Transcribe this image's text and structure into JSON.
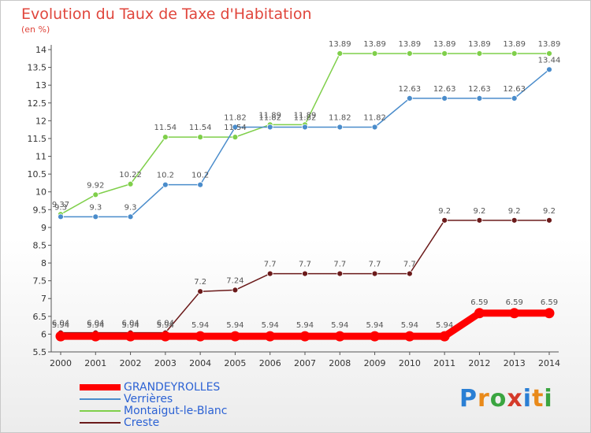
{
  "chart_data": {
    "type": "line",
    "title": "Evolution du Taux de Taxe d'Habitation",
    "subtitle": "(en %)",
    "x": [
      "2000",
      "2001",
      "2002",
      "2003",
      "2004",
      "2005",
      "2006",
      "2007",
      "2008",
      "2009",
      "2010",
      "2011",
      "2012",
      "2013",
      "2014"
    ],
    "ylim": [
      5.5,
      14
    ],
    "yticks": [
      "5.5",
      "6",
      "6.5",
      "7",
      "7.5",
      "8",
      "8.5",
      "9",
      "9.5",
      "10",
      "10.5",
      "11",
      "11.5",
      "12",
      "12.5",
      "13",
      "13.5",
      "14"
    ],
    "grid": false,
    "legend_position": "bottom-left",
    "series": [
      {
        "name": "GRANDEYROLLES",
        "color": "#ff0000",
        "values": [
          5.94,
          5.94,
          5.94,
          5.94,
          5.94,
          5.94,
          5.94,
          5.94,
          5.94,
          5.94,
          5.94,
          5.94,
          6.59,
          6.59,
          6.59
        ],
        "labels": [
          "5.94",
          "5.94",
          "5.94",
          "5.94",
          "5.94",
          "5.94",
          "5.94",
          "5.94",
          "5.94",
          "5.94",
          "5.94",
          "5.94",
          "6.59",
          "6.59",
          "6.59"
        ]
      },
      {
        "name": "Verrières",
        "color": "#4a8ccb",
        "values": [
          9.3,
          9.3,
          9.3,
          10.2,
          10.2,
          11.82,
          11.82,
          11.82,
          11.82,
          11.82,
          12.63,
          12.63,
          12.63,
          12.63,
          13.44
        ],
        "labels": [
          "9.3",
          "9.3",
          "9.3",
          "10.2",
          "10.2",
          "11.82",
          "11.82",
          "11.82",
          "11.82",
          "11.82",
          "12.63",
          "12.63",
          "12.63",
          "12.63",
          "13.44"
        ]
      },
      {
        "name": "Montaigut-le-Blanc",
        "color": "#7fcf4a",
        "values": [
          9.37,
          9.92,
          10.22,
          11.54,
          11.54,
          11.54,
          11.89,
          11.89,
          13.89,
          13.89,
          13.89,
          13.89,
          13.89,
          13.89,
          13.89
        ],
        "labels": [
          "9.37",
          "9.92",
          "10.22",
          "11.54",
          "11.54",
          "11.54",
          "11.89",
          "11.89",
          "13.89",
          "13.89",
          "13.89",
          "13.89",
          "13.89",
          "13.89",
          "13.89"
        ]
      },
      {
        "name": "Creste",
        "color": "#6b1a1a",
        "values": [
          6.04,
          6.04,
          6.04,
          6.04,
          7.2,
          7.24,
          7.7,
          7.7,
          7.7,
          7.7,
          7.7,
          9.2,
          9.2,
          9.2,
          9.2
        ],
        "labels": [
          "6.04",
          "6.04",
          "6.04",
          "6.04",
          "7.2",
          "7.24",
          "7.7",
          "7.7",
          "7.7",
          "7.7",
          "7.7",
          "9.2",
          "9.2",
          "9.2",
          "9.2"
        ]
      }
    ]
  },
  "logo": {
    "letters": [
      "P",
      "r",
      "o",
      "x",
      "i",
      "t",
      "i"
    ]
  }
}
